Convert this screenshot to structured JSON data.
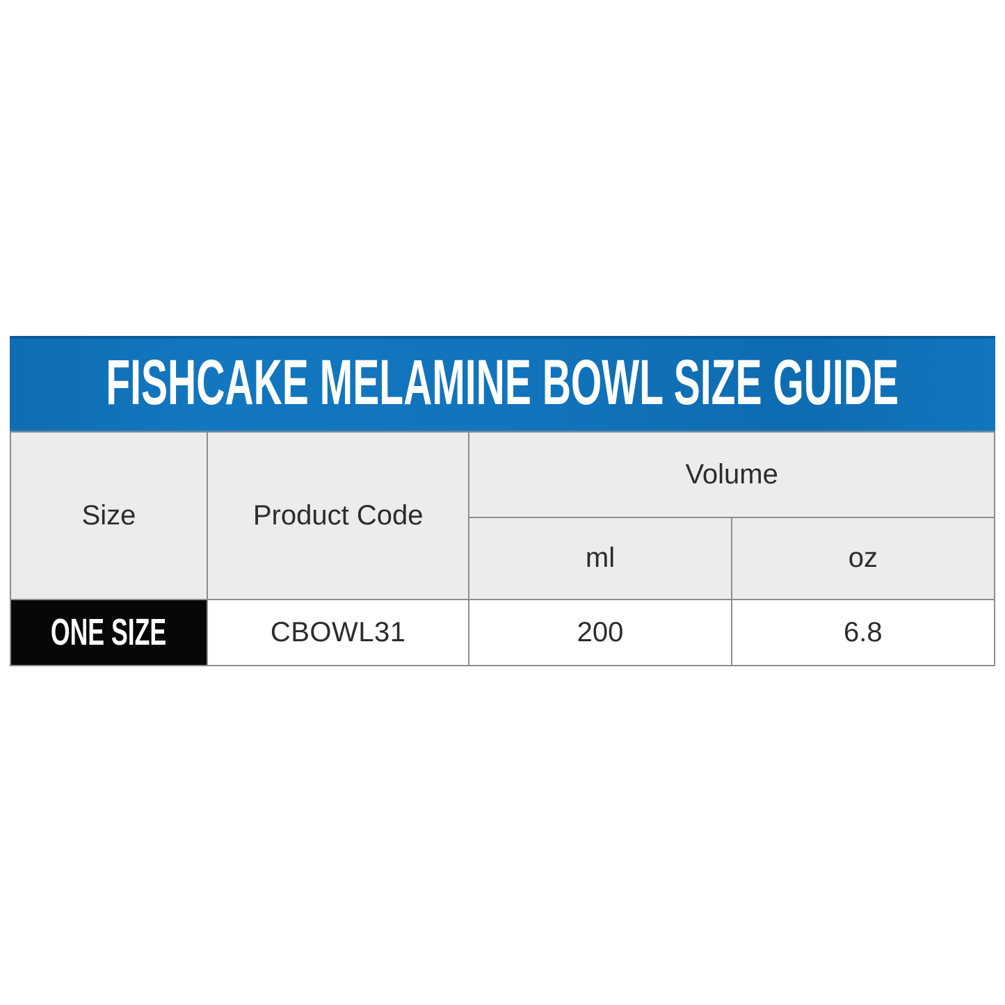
{
  "banner": {
    "title": "FISHCAKE MELAMINE BOWL SIZE GUIDE"
  },
  "table": {
    "header": {
      "size": "Size",
      "product_code": "Product Code",
      "volume": "Volume",
      "unit_ml": "ml",
      "unit_oz": "oz"
    },
    "rows": [
      {
        "size": "ONE SIZE",
        "product_code": "CBOWL31",
        "volume_ml": "200",
        "volume_oz": "6.8"
      }
    ]
  },
  "colors": {
    "banner_blue": "#1173bb",
    "banner_blue_dark_edge": "#0b5c99",
    "header_cell_gray": "#ececec",
    "grid_line_gray": "#8d8d8d",
    "size_cell_black": "#070707",
    "banner_text_white": "#ffffff"
  }
}
